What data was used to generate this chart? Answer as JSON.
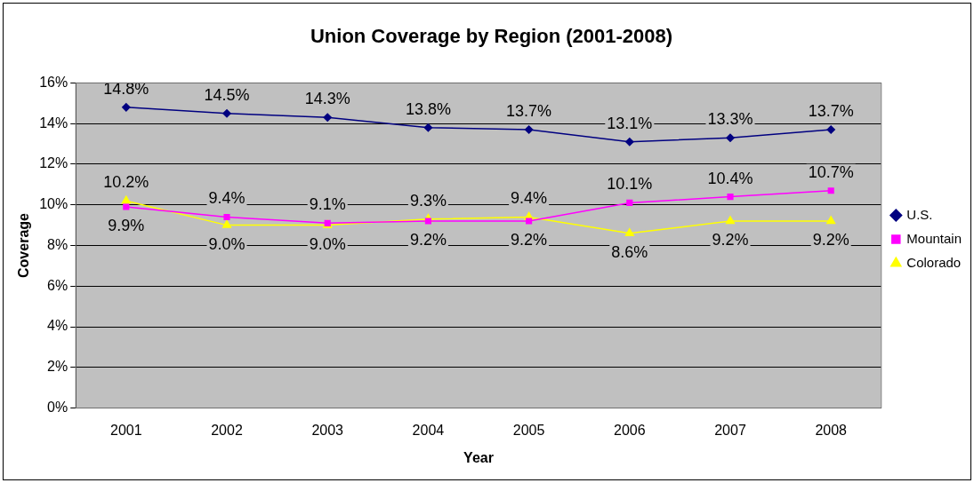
{
  "chart_data": {
    "type": "line",
    "title": "Union Coverage by Region (2001-2008)",
    "xlabel": "Year",
    "ylabel": "Coverage",
    "categories": [
      "2001",
      "2002",
      "2003",
      "2004",
      "2005",
      "2006",
      "2007",
      "2008"
    ],
    "series": [
      {
        "name": "U.S.",
        "color": "#000080",
        "marker": "diamond",
        "values": [
          14.8,
          14.5,
          14.3,
          13.8,
          13.7,
          13.1,
          13.3,
          13.7
        ],
        "value_labels": [
          "14.8%",
          "14.5%",
          "14.3%",
          "13.8%",
          "13.7%",
          "13.1%",
          "13.3%",
          "13.7%"
        ]
      },
      {
        "name": "Mountain",
        "color": "#ff00ff",
        "marker": "square",
        "values": [
          9.9,
          9.4,
          9.1,
          9.2,
          9.2,
          10.1,
          10.4,
          10.7
        ],
        "value_labels": [
          "9.9%",
          "9.4%",
          "9.1%",
          "9.2%",
          "9.2%",
          "10.1%",
          "10.4%",
          "10.7%"
        ]
      },
      {
        "name": "Colorado",
        "color": "#ffff00",
        "marker": "triangle",
        "values": [
          10.2,
          9.0,
          9.0,
          9.3,
          9.4,
          8.6,
          9.2,
          9.2
        ],
        "value_labels": [
          "10.2%",
          "9.0%",
          "9.0%",
          "9.3%",
          "9.4%",
          "8.6%",
          "9.2%",
          "9.2%"
        ]
      }
    ],
    "ylim": [
      0,
      16
    ],
    "yticks": [
      {
        "value": 0,
        "label": "0%"
      },
      {
        "value": 2,
        "label": "2%"
      },
      {
        "value": 4,
        "label": "4%"
      },
      {
        "value": 6,
        "label": "6%"
      },
      {
        "value": 8,
        "label": "8%"
      },
      {
        "value": 10,
        "label": "10%"
      },
      {
        "value": 12,
        "label": "12%"
      },
      {
        "value": 14,
        "label": "14%"
      },
      {
        "value": 16,
        "label": "16%"
      }
    ],
    "grid": "y",
    "legend": "right",
    "line_style": "solid"
  }
}
